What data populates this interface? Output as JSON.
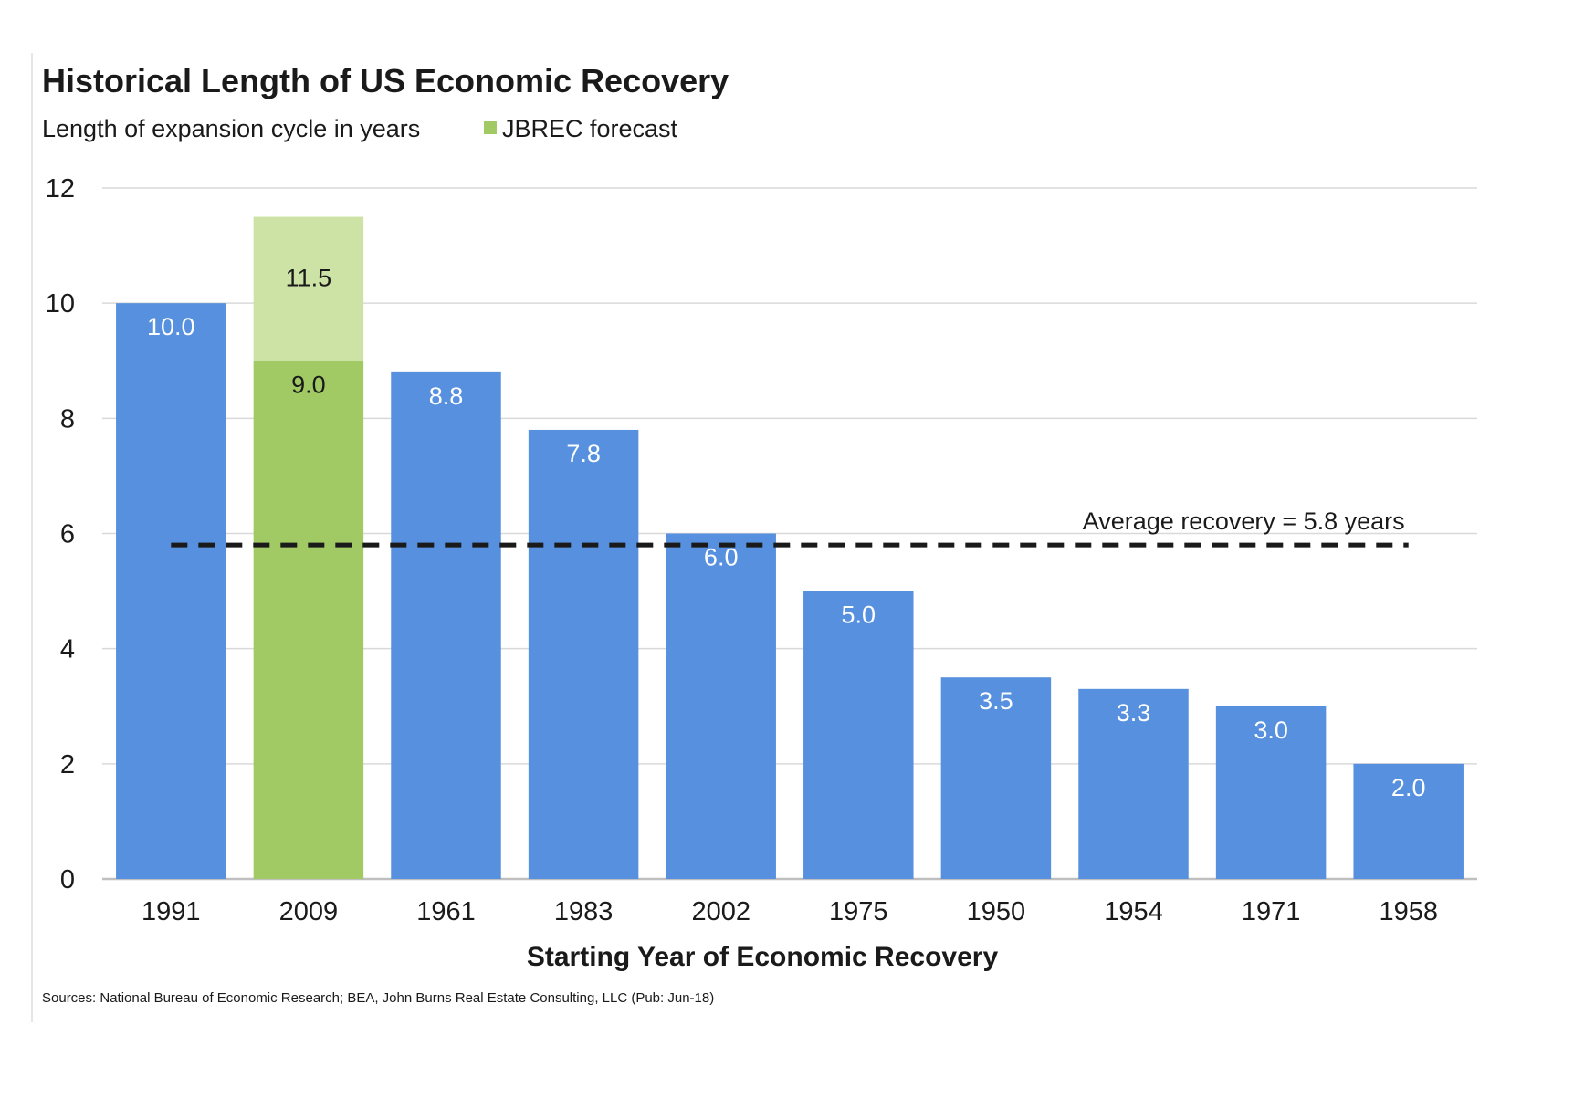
{
  "chart_data": {
    "type": "bar",
    "title": "Historical Length of US Economic Recovery",
    "subtitle": "Length of expansion cycle in years",
    "xlabel": "Starting Year of Economic Recovery",
    "ylabel": "",
    "source": "Sources: National Bureau of Economic Research; BEA, John Burns Real Estate Consulting, LLC (Pub: Jun-18)",
    "categories": [
      "1991",
      "2009",
      "1961",
      "1983",
      "2002",
      "1975",
      "1950",
      "1954",
      "1971",
      "1958"
    ],
    "values": [
      10.0,
      9.0,
      8.8,
      7.8,
      6.0,
      5.0,
      3.5,
      3.3,
      3.0,
      2.0
    ],
    "value_labels": [
      "10.0",
      "9.0",
      "8.8",
      "7.8",
      "6.0",
      "5.0",
      "3.5",
      "3.3",
      "3.0",
      "2.0"
    ],
    "forecast": {
      "legend_label": "JBREC forecast",
      "category": "2009",
      "value": 11.5,
      "value_label": "11.5"
    },
    "average": {
      "value": 5.8,
      "label": "Average recovery = 5.8 years",
      "style": "dashed"
    },
    "ylim": [
      0,
      12
    ],
    "yticks": [
      0,
      2,
      4,
      6,
      8,
      10,
      12
    ],
    "ytick_labels": [
      "0",
      "2",
      "4",
      "6",
      "8",
      "10",
      "12"
    ],
    "grid": "horizontal",
    "legend_placement": "top-left",
    "colors": {
      "bar": "#5690de",
      "bar_2009": "#a1ca64",
      "forecast": "#cde3a5",
      "grid": "#d9d9d9",
      "average_line": "#1a1a1a",
      "text": "#1a1a1a",
      "label_light": "#ffffff"
    }
  }
}
